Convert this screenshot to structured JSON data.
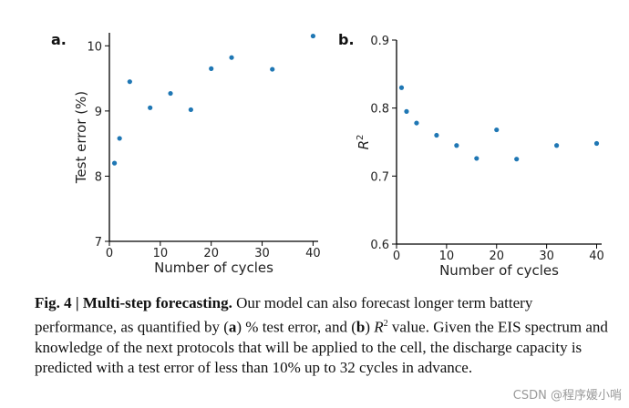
{
  "chart_data": [
    {
      "type": "scatter",
      "panel_label": "a.",
      "xlabel": "Number of cycles",
      "ylabel": "Test error (%)",
      "xlim": [
        0,
        41
      ],
      "ylim": [
        7,
        10.2
      ],
      "xticks": [
        0,
        10,
        20,
        30,
        40
      ],
      "yticks": [
        7,
        8,
        9,
        10
      ],
      "x": [
        1,
        2,
        4,
        8,
        12,
        16,
        20,
        24,
        32,
        40
      ],
      "y": [
        8.2,
        8.58,
        9.45,
        9.05,
        9.27,
        9.02,
        9.65,
        9.82,
        9.64,
        10.15
      ],
      "color": "#1f77b4"
    },
    {
      "type": "scatter",
      "panel_label": "b.",
      "xlabel": "Number of cycles",
      "ylabel": "R",
      "ylabel_superscript": "2",
      "xlim": [
        0,
        41
      ],
      "ylim": [
        0.6,
        0.9
      ],
      "xticks": [
        0,
        10,
        20,
        30,
        40
      ],
      "yticks": [
        0.6,
        0.7,
        0.8,
        0.9
      ],
      "x": [
        1,
        2,
        4,
        8,
        12,
        16,
        20,
        24,
        32,
        40
      ],
      "y": [
        0.83,
        0.795,
        0.778,
        0.76,
        0.745,
        0.726,
        0.768,
        0.725,
        0.745,
        0.748
      ],
      "color": "#1f77b4"
    }
  ],
  "caption": {
    "fig_label": "Fig. 4 | Multi-step forecasting.",
    "t1": " Our model can also forecast longer term battery performance, as quantified by (",
    "a": "a",
    "t2": ") % test error, and (",
    "b": "b",
    "t3": ") ",
    "r": "R",
    "r_sup": "2",
    "t4": " value. Given the EIS spectrum and knowledge of the next protocols that will be applied to the cell, the discharge capacity is predicted with a test error of less than 10% up to 32 cycles in advance."
  },
  "watermark": "CSDN @程序媛小哨"
}
